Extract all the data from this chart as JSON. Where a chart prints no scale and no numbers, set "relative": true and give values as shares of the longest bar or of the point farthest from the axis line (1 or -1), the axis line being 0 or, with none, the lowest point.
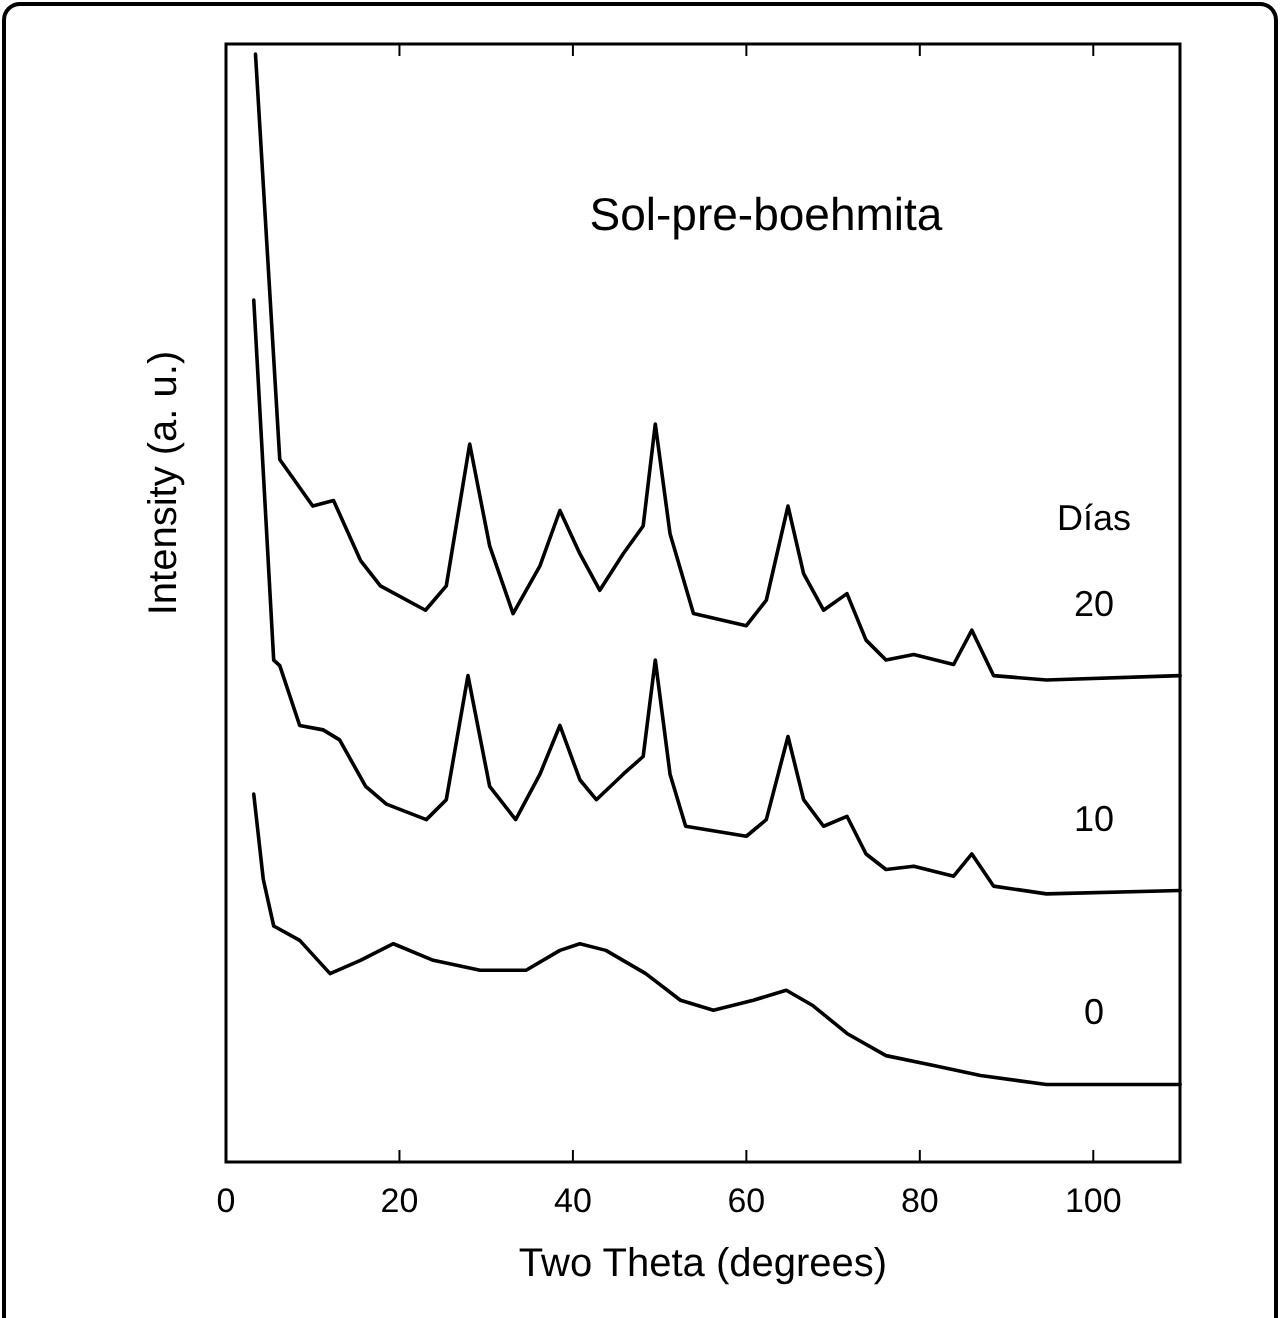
{
  "chart_data": {
    "type": "line",
    "title": "Sol-pre-boehmita",
    "xlabel": "Two Theta (degrees)",
    "ylabel": "Intensity (a. u.)",
    "legend_title": "Días",
    "relative": true,
    "marker": "none",
    "line_style": "solid",
    "grid": false,
    "xlim": [
      0,
      110
    ],
    "xticks": [
      0,
      20,
      40,
      60,
      80,
      100
    ],
    "series": [
      {
        "name": "20",
        "color": "#000000",
        "x": [
          3.4,
          6.2,
          10,
          12.4,
          15.5,
          17.8,
          23,
          25.4,
          28.1,
          30.4,
          33.1,
          36.2,
          38.5,
          40.8,
          43.1,
          45.8,
          48.1,
          49.5,
          51.2,
          53.9,
          60,
          62.3,
          64.8,
          66.6,
          68.9,
          71.6,
          73.8,
          76.1,
          79.3,
          83.9,
          86,
          88.5,
          94.6,
          110
        ],
        "values": [
          1.0,
          0.634,
          0.592,
          0.597,
          0.543,
          0.52,
          0.498,
          0.52,
          0.648,
          0.556,
          0.495,
          0.538,
          0.588,
          0.549,
          0.516,
          0.549,
          0.574,
          0.666,
          0.567,
          0.495,
          0.484,
          0.507,
          0.592,
          0.531,
          0.498,
          0.513,
          0.471,
          0.453,
          0.458,
          0.449,
          0.48,
          0.439,
          0.435,
          0.439
        ]
      },
      {
        "name": "10",
        "color": "#000000",
        "x": [
          3.2,
          5.5,
          6.2,
          8.5,
          11.2,
          13.1,
          16.1,
          18.5,
          23.1,
          25.4,
          27.9,
          30.4,
          33.4,
          36.2,
          38.5,
          40.8,
          42.7,
          45.8,
          48.1,
          49.5,
          51.2,
          53,
          60,
          62.3,
          64.8,
          66.6,
          68.9,
          71.6,
          73.8,
          76.1,
          79.3,
          83.9,
          86,
          88.5,
          94.6,
          110
        ],
        "values": [
          0.778,
          0.453,
          0.448,
          0.394,
          0.39,
          0.381,
          0.339,
          0.323,
          0.309,
          0.327,
          0.439,
          0.339,
          0.309,
          0.35,
          0.394,
          0.345,
          0.327,
          0.35,
          0.366,
          0.453,
          0.35,
          0.303,
          0.294,
          0.309,
          0.384,
          0.327,
          0.303,
          0.312,
          0.278,
          0.264,
          0.267,
          0.258,
          0.278,
          0.249,
          0.242,
          0.245
        ]
      },
      {
        "name": "0",
        "color": "#000000",
        "x": [
          3.2,
          4.3,
          5.5,
          8.5,
          12,
          15.5,
          19.3,
          23.9,
          29.3,
          34.6,
          38.5,
          40.8,
          43.8,
          48.4,
          52.4,
          56.2,
          60.8,
          64.6,
          67.7,
          71.6,
          76.1,
          81.6,
          87,
          94.6,
          110
        ],
        "values": [
          0.332,
          0.255,
          0.213,
          0.2,
          0.17,
          0.182,
          0.197,
          0.182,
          0.173,
          0.173,
          0.191,
          0.197,
          0.191,
          0.17,
          0.146,
          0.137,
          0.146,
          0.155,
          0.141,
          0.116,
          0.096,
          0.087,
          0.078,
          0.07,
          0.07
        ]
      }
    ]
  }
}
